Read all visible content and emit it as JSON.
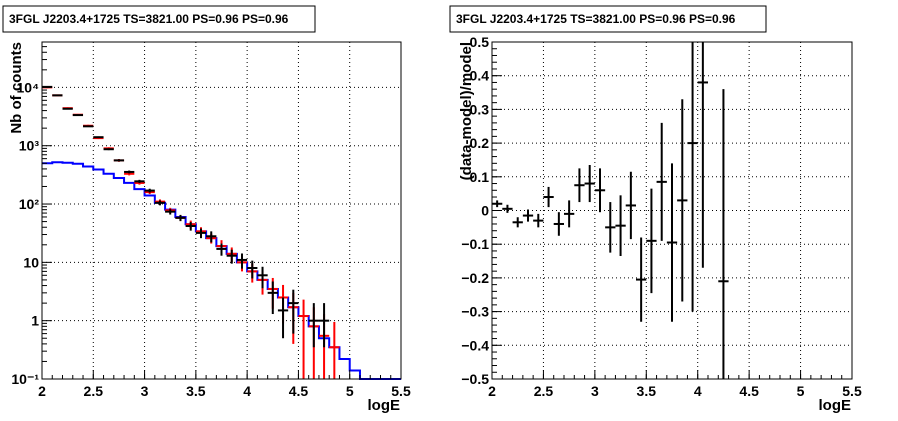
{
  "chart_data": [
    {
      "id": "counts",
      "type": "step",
      "title": "3FGL J2203.4+1725 TS=3821.00 PS=0.96 PS=0.96",
      "xlabel": "logE",
      "ylabel": "Nb of counts",
      "xlim": [
        2,
        5.5
      ],
      "ylim": [
        0.1,
        60000
      ],
      "yscale": "log",
      "grid": true,
      "xticks": [
        "2",
        "2.5",
        "3",
        "3.5",
        "4",
        "4.5",
        "5",
        "5.5"
      ],
      "yticks": [
        {
          "value": 0.1,
          "label": "10⁻¹"
        },
        {
          "value": 1,
          "label": "1"
        },
        {
          "value": 10,
          "label": "10"
        },
        {
          "value": 100,
          "label": "10²"
        },
        {
          "value": 1000,
          "label": "10³"
        },
        {
          "value": 10000,
          "label": "10⁴"
        }
      ],
      "bin_width": 0.1,
      "model_step": {
        "color": "#0000ff",
        "x_start": 2.0,
        "values": [
          500,
          520,
          510,
          490,
          440,
          390,
          330,
          280,
          230,
          180,
          140,
          105,
          80,
          60,
          45,
          34,
          26,
          19,
          14,
          10,
          7,
          5,
          3.5,
          2.5,
          1.7,
          1.2,
          0.8,
          0.5,
          0.35,
          0.22,
          0.14,
          0.1,
          0.1,
          0.1,
          0.1
        ]
      },
      "red_series": {
        "color": "#ff0000",
        "points": [
          {
            "x": 2.05,
            "y": 10000,
            "lo": 9700,
            "hi": 10300
          },
          {
            "x": 2.15,
            "y": 7300,
            "lo": 7100,
            "hi": 7500
          },
          {
            "x": 2.25,
            "y": 4400,
            "lo": 4250,
            "hi": 4550
          },
          {
            "x": 2.35,
            "y": 3400,
            "lo": 3300,
            "hi": 3500
          },
          {
            "x": 2.45,
            "y": 2200,
            "lo": 2120,
            "hi": 2280
          },
          {
            "x": 2.55,
            "y": 1350,
            "lo": 1300,
            "hi": 1400
          },
          {
            "x": 2.65,
            "y": 900,
            "lo": 860,
            "hi": 940
          },
          {
            "x": 2.75,
            "y": 560,
            "lo": 530,
            "hi": 590
          },
          {
            "x": 2.85,
            "y": 330,
            "lo": 310,
            "hi": 350
          },
          {
            "x": 2.95,
            "y": 230,
            "lo": 215,
            "hi": 245
          },
          {
            "x": 3.05,
            "y": 160,
            "lo": 148,
            "hi": 172
          },
          {
            "x": 3.15,
            "y": 110,
            "lo": 100,
            "hi": 120
          },
          {
            "x": 3.25,
            "y": 78,
            "lo": 70,
            "hi": 86
          },
          {
            "x": 3.35,
            "y": 58,
            "lo": 51,
            "hi": 65
          },
          {
            "x": 3.45,
            "y": 45,
            "lo": 38,
            "hi": 52
          },
          {
            "x": 3.55,
            "y": 34,
            "lo": 28,
            "hi": 40
          },
          {
            "x": 3.65,
            "y": 26,
            "lo": 21,
            "hi": 31
          },
          {
            "x": 3.75,
            "y": 19,
            "lo": 15,
            "hi": 24
          },
          {
            "x": 3.85,
            "y": 14,
            "lo": 10,
            "hi": 18
          },
          {
            "x": 3.95,
            "y": 10,
            "lo": 7,
            "hi": 13
          },
          {
            "x": 4.05,
            "y": 7,
            "lo": 4.5,
            "hi": 9.5
          },
          {
            "x": 4.15,
            "y": 5,
            "lo": 2.8,
            "hi": 7.2
          },
          {
            "x": 4.25,
            "y": 3.5,
            "lo": 1.6,
            "hi": 5.4
          },
          {
            "x": 4.35,
            "y": 2.5,
            "lo": 0.9,
            "hi": 4.1
          },
          {
            "x": 4.45,
            "y": 1.7,
            "lo": 0.4,
            "hi": 3.0
          },
          {
            "x": 4.55,
            "y": 1.2,
            "lo": 0.1,
            "hi": 2.3
          },
          {
            "x": 4.65,
            "y": 0.8,
            "lo": 0.1,
            "hi": 1.7
          },
          {
            "x": 4.75,
            "y": 0.55,
            "lo": 0.1,
            "hi": 1.3
          },
          {
            "x": 4.85,
            "y": 0.35,
            "lo": 0.1,
            "hi": 0.95
          }
        ]
      },
      "data_points": {
        "color": "#000000",
        "points": [
          {
            "x": 2.05,
            "y": 10200,
            "lo": 10100,
            "hi": 10300
          },
          {
            "x": 2.15,
            "y": 7300,
            "lo": 7220,
            "hi": 7380
          },
          {
            "x": 2.25,
            "y": 4300,
            "lo": 4230,
            "hi": 4370
          },
          {
            "x": 2.35,
            "y": 3350,
            "lo": 3290,
            "hi": 3410
          },
          {
            "x": 2.45,
            "y": 2150,
            "lo": 2100,
            "hi": 2200
          },
          {
            "x": 2.55,
            "y": 1400,
            "lo": 1360,
            "hi": 1440
          },
          {
            "x": 2.65,
            "y": 870,
            "lo": 840,
            "hi": 900
          },
          {
            "x": 2.75,
            "y": 560,
            "lo": 535,
            "hi": 585
          },
          {
            "x": 2.85,
            "y": 355,
            "lo": 335,
            "hi": 375
          },
          {
            "x": 2.95,
            "y": 245,
            "lo": 230,
            "hi": 260
          },
          {
            "x": 3.05,
            "y": 170,
            "lo": 157,
            "hi": 183
          },
          {
            "x": 3.15,
            "y": 105,
            "lo": 95,
            "hi": 115
          },
          {
            "x": 3.25,
            "y": 74,
            "lo": 66,
            "hi": 82
          },
          {
            "x": 3.35,
            "y": 58,
            "lo": 51,
            "hi": 65
          },
          {
            "x": 3.45,
            "y": 42,
            "lo": 35,
            "hi": 49
          },
          {
            "x": 3.55,
            "y": 32,
            "lo": 26,
            "hi": 38
          },
          {
            "x": 3.65,
            "y": 28,
            "lo": 22,
            "hi": 34
          },
          {
            "x": 3.75,
            "y": 17,
            "lo": 13,
            "hi": 21
          },
          {
            "x": 3.85,
            "y": 13,
            "lo": 9.5,
            "hi": 16.5
          },
          {
            "x": 3.95,
            "y": 11,
            "lo": 7.8,
            "hi": 14.2
          },
          {
            "x": 4.05,
            "y": 8,
            "lo": 5.3,
            "hi": 10.7
          },
          {
            "x": 4.15,
            "y": 6,
            "lo": 3.6,
            "hi": 8.4
          },
          {
            "x": 4.25,
            "y": 3,
            "lo": 1.3,
            "hi": 4.7
          },
          {
            "x": 4.35,
            "y": 1.5,
            "lo": 0.5,
            "hi": 2.5
          },
          {
            "x": 4.45,
            "y": 2,
            "lo": 0.6,
            "hi": 3.4
          },
          {
            "x": 4.65,
            "y": 1,
            "lo": 0.35,
            "hi": 2.0
          },
          {
            "x": 4.75,
            "y": 1,
            "lo": 0.35,
            "hi": 2.0
          }
        ]
      }
    },
    {
      "id": "residuals",
      "type": "errorbar",
      "title": "3FGL J2203.4+1725 TS=3821.00 PS=0.96 PS=0.96",
      "xlabel": "logE",
      "ylabel": "(data-model)/model",
      "xlim": [
        2,
        5.5
      ],
      "ylim": [
        -0.5,
        0.5
      ],
      "grid": true,
      "xticks": [
        "2",
        "2.5",
        "3",
        "3.5",
        "4",
        "4.5",
        "5",
        "5.5"
      ],
      "yticks": [
        "-0.5",
        "-0.4",
        "-0.3",
        "-0.2",
        "-0.1",
        "0",
        "0.1",
        "0.2",
        "0.3",
        "0.4",
        "0.5"
      ],
      "points": [
        {
          "x": 2.05,
          "y": 0.02,
          "err": 0.01
        },
        {
          "x": 2.15,
          "y": 0.005,
          "err": 0.012
        },
        {
          "x": 2.25,
          "y": -0.035,
          "err": 0.015
        },
        {
          "x": 2.35,
          "y": -0.015,
          "err": 0.018
        },
        {
          "x": 2.45,
          "y": -0.03,
          "err": 0.02
        },
        {
          "x": 2.55,
          "y": 0.04,
          "err": 0.03
        },
        {
          "x": 2.65,
          "y": -0.04,
          "err": 0.035
        },
        {
          "x": 2.75,
          "y": -0.01,
          "err": 0.04
        },
        {
          "x": 2.85,
          "y": 0.075,
          "err": 0.05
        },
        {
          "x": 2.95,
          "y": 0.08,
          "err": 0.055
        },
        {
          "x": 3.05,
          "y": 0.06,
          "err": 0.065
        },
        {
          "x": 3.15,
          "y": -0.05,
          "err": 0.075
        },
        {
          "x": 3.25,
          "y": -0.045,
          "err": 0.09
        },
        {
          "x": 3.35,
          "y": 0.015,
          "err": 0.1
        },
        {
          "x": 3.45,
          "y": -0.205,
          "err": 0.125
        },
        {
          "x": 3.55,
          "y": -0.09,
          "err": 0.155
        },
        {
          "x": 3.65,
          "y": 0.085,
          "err": 0.175
        },
        {
          "x": 3.75,
          "y": -0.095,
          "err": 0.235
        },
        {
          "x": 3.85,
          "y": 0.03,
          "err": 0.3
        },
        {
          "x": 3.95,
          "y": 0.2,
          "err": 0.5
        },
        {
          "x": 4.05,
          "y": 0.38,
          "err": 0.55
        },
        {
          "x": 4.25,
          "y": -0.21,
          "err": 0.57
        }
      ]
    }
  ]
}
